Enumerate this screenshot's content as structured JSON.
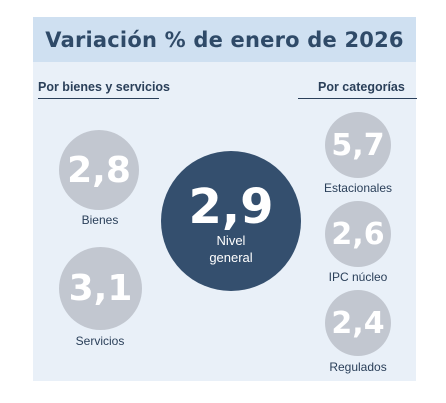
{
  "header": {
    "title": "Variación % de enero de 2026"
  },
  "sections": {
    "left_title": "Por bienes y servicios",
    "right_title": "Por categorías"
  },
  "main": {
    "value": "2,9",
    "label_line1": "Nivel",
    "label_line2": "general"
  },
  "items": [
    {
      "value": "2,8",
      "label": "Bienes"
    },
    {
      "value": "3,1",
      "label": "Servicios"
    },
    {
      "value": "5,7",
      "label": "Estacionales"
    },
    {
      "value": "2,6",
      "label": "IPC núcleo"
    },
    {
      "value": "2,4",
      "label": "Regulados"
    }
  ],
  "colors": {
    "header_bg": "#cfe0f1",
    "panel_bg": "#e9f0f8",
    "dark_circle": "#344f6e",
    "grey_circle": "#c2c7d0",
    "text": "#2a3f59"
  }
}
